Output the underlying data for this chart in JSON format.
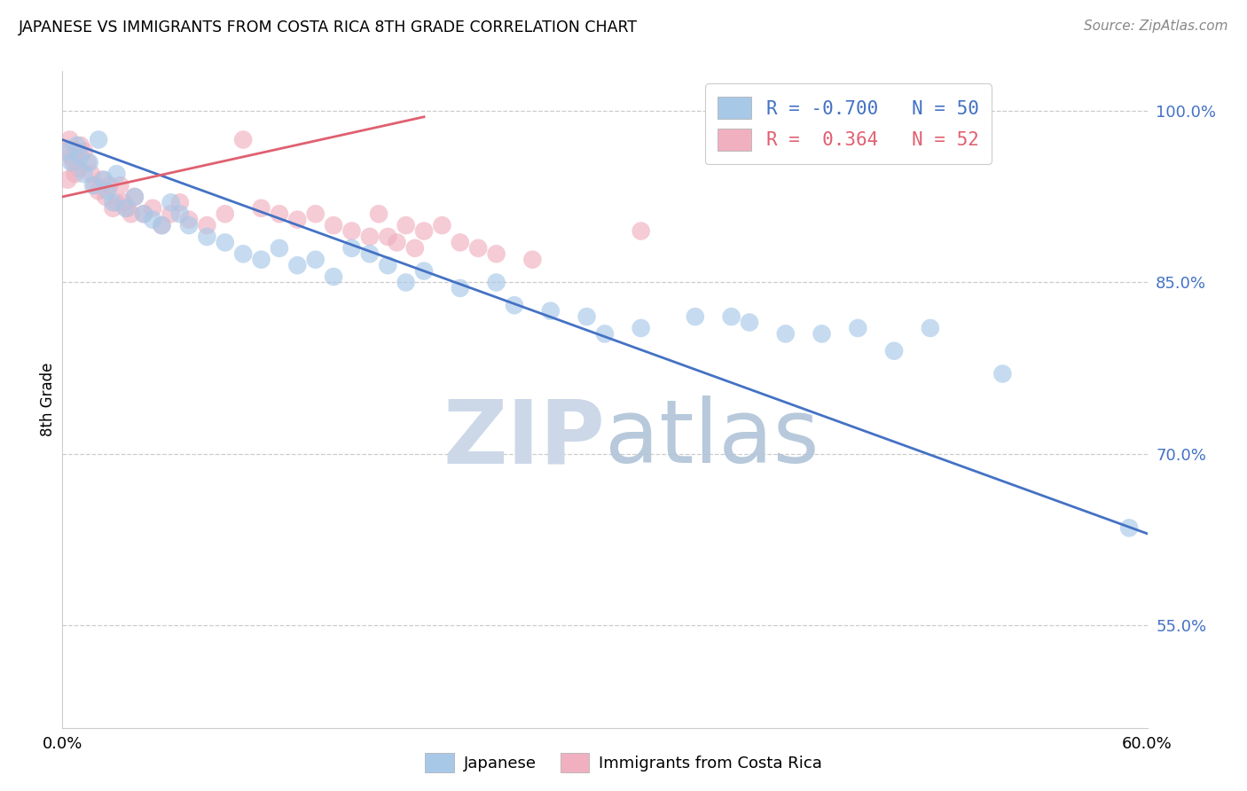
{
  "title": "JAPANESE VS IMMIGRANTS FROM COSTA RICA 8TH GRADE CORRELATION CHART",
  "source": "Source: ZipAtlas.com",
  "ylabel": "8th Grade",
  "xlim": [
    0.0,
    60.0
  ],
  "ylim": [
    46.0,
    103.5
  ],
  "yticks": [
    55.0,
    70.0,
    85.0,
    100.0
  ],
  "ytick_labels": [
    "55.0%",
    "70.0%",
    "85.0%",
    "100.0%"
  ],
  "xticks": [
    0.0,
    10.0,
    20.0,
    30.0,
    40.0,
    50.0,
    60.0
  ],
  "xtick_labels": [
    "0.0%",
    "",
    "",
    "",
    "",
    "",
    "60.0%"
  ],
  "blue_R": -0.7,
  "blue_N": 50,
  "pink_R": 0.364,
  "pink_N": 52,
  "blue_color": "#a8c8e8",
  "pink_color": "#f0b0c0",
  "blue_line_color": "#4472c4",
  "pink_line_color": "#e06070",
  "watermark_zip_color": "#ccd8e8",
  "watermark_atlas_color": "#b0c4d8",
  "legend_blue_label": "Japanese",
  "legend_pink_label": "Immigrants from Costa Rica",
  "blue_line_x0": 0.0,
  "blue_line_y0": 97.5,
  "blue_line_x1": 60.0,
  "blue_line_y1": 63.0,
  "pink_line_x0": 0.0,
  "pink_line_y0": 92.5,
  "pink_line_x1": 20.0,
  "pink_line_y1": 99.5,
  "blue_x": [
    0.3,
    0.5,
    0.8,
    1.0,
    1.2,
    1.5,
    1.7,
    2.0,
    2.3,
    2.5,
    2.8,
    3.0,
    3.5,
    4.0,
    4.5,
    5.0,
    5.5,
    6.0,
    6.5,
    7.0,
    8.0,
    9.0,
    10.0,
    11.0,
    12.0,
    13.0,
    14.0,
    15.0,
    16.0,
    17.0,
    18.0,
    19.0,
    20.0,
    22.0,
    24.0,
    25.0,
    27.0,
    29.0,
    30.0,
    32.0,
    35.0,
    37.0,
    38.0,
    40.0,
    42.0,
    44.0,
    46.0,
    48.0,
    52.0,
    59.0
  ],
  "blue_y": [
    96.5,
    95.5,
    97.0,
    96.0,
    94.5,
    95.5,
    93.5,
    97.5,
    94.0,
    93.0,
    92.0,
    94.5,
    91.5,
    92.5,
    91.0,
    90.5,
    90.0,
    92.0,
    91.0,
    90.0,
    89.0,
    88.5,
    87.5,
    87.0,
    88.0,
    86.5,
    87.0,
    85.5,
    88.0,
    87.5,
    86.5,
    85.0,
    86.0,
    84.5,
    85.0,
    83.0,
    82.5,
    82.0,
    80.5,
    81.0,
    82.0,
    82.0,
    81.5,
    80.5,
    80.5,
    81.0,
    79.0,
    81.0,
    77.0,
    63.5
  ],
  "pink_x": [
    0.2,
    0.3,
    0.4,
    0.5,
    0.6,
    0.7,
    0.8,
    0.9,
    1.0,
    1.2,
    1.4,
    1.6,
    1.8,
    2.0,
    2.2,
    2.4,
    2.6,
    2.8,
    3.0,
    3.2,
    3.4,
    3.6,
    3.8,
    4.0,
    4.5,
    5.0,
    5.5,
    6.0,
    6.5,
    7.0,
    8.0,
    9.0,
    10.0,
    11.0,
    12.0,
    13.0,
    14.0,
    15.0,
    16.0,
    17.0,
    17.5,
    18.0,
    18.5,
    19.0,
    19.5,
    20.0,
    21.0,
    22.0,
    23.0,
    24.0,
    26.0,
    32.0
  ],
  "pink_y": [
    96.5,
    94.0,
    97.5,
    96.0,
    95.5,
    94.5,
    96.5,
    95.0,
    97.0,
    96.5,
    95.5,
    94.5,
    93.5,
    93.0,
    94.0,
    92.5,
    93.5,
    91.5,
    92.0,
    93.5,
    92.0,
    91.5,
    91.0,
    92.5,
    91.0,
    91.5,
    90.0,
    91.0,
    92.0,
    90.5,
    90.0,
    91.0,
    97.5,
    91.5,
    91.0,
    90.5,
    91.0,
    90.0,
    89.5,
    89.0,
    91.0,
    89.0,
    88.5,
    90.0,
    88.0,
    89.5,
    90.0,
    88.5,
    88.0,
    87.5,
    87.0,
    89.5
  ]
}
